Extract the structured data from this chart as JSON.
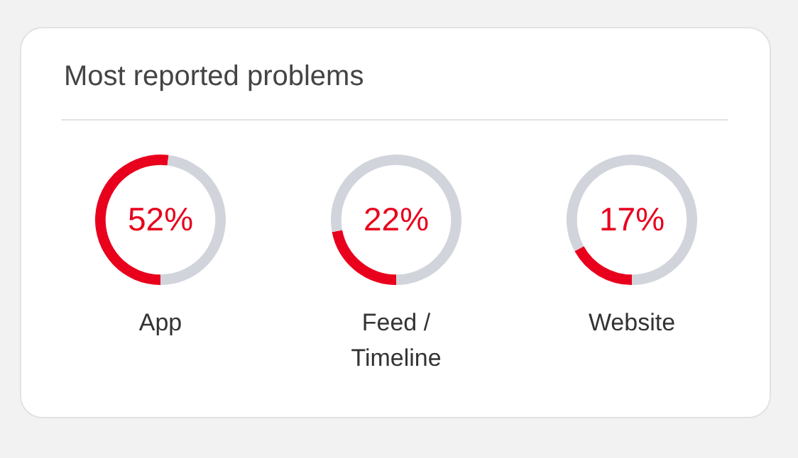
{
  "chart_data": [
    {
      "type": "donut",
      "title": "Most reported problems",
      "categories": [
        "App",
        null
      ],
      "values": [
        52,
        48
      ],
      "colors": [
        "#e8001c",
        "#d1d4db"
      ],
      "annotations": [
        "52%"
      ]
    },
    {
      "type": "donut",
      "categories": [
        "Feed / Timeline",
        null
      ],
      "values": [
        22,
        78
      ],
      "colors": [
        "#e8001c",
        "#d1d4db"
      ],
      "annotations": [
        "22%"
      ]
    },
    {
      "type": "donut",
      "categories": [
        "Website",
        null
      ],
      "values": [
        17,
        83
      ],
      "colors": [
        "#e8001c",
        "#d1d4db"
      ],
      "annotations": [
        "17%"
      ]
    }
  ]
}
